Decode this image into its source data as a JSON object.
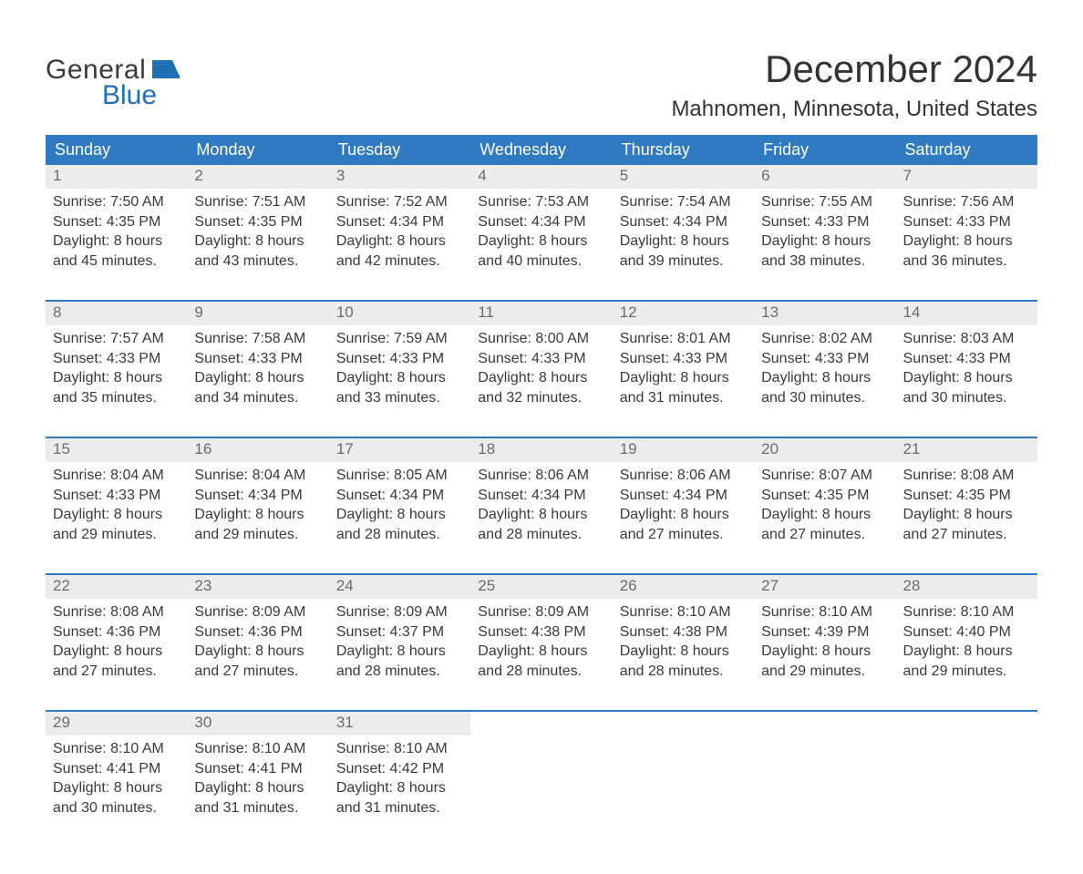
{
  "brand": {
    "word1": "General",
    "word2": "Blue",
    "flag_color": "#1f6fb2",
    "text_color_dark": "#3a3a3a"
  },
  "title": "December 2024",
  "location": "Mahnomen, Minnesota, United States",
  "colors": {
    "header_bg": "#2f7ac0",
    "header_text": "#ffffff",
    "daynum_bg": "#ececec",
    "daynum_text": "#6b6b6b",
    "body_text": "#3a3a3a",
    "rule": "#2f7ac0",
    "page_bg": "#ffffff"
  },
  "day_headers": [
    "Sunday",
    "Monday",
    "Tuesday",
    "Wednesday",
    "Thursday",
    "Friday",
    "Saturday"
  ],
  "weeks": [
    [
      {
        "n": "1",
        "sunrise": "7:50 AM",
        "sunset": "4:35 PM",
        "dl1": "Daylight: 8 hours",
        "dl2": "and 45 minutes."
      },
      {
        "n": "2",
        "sunrise": "7:51 AM",
        "sunset": "4:35 PM",
        "dl1": "Daylight: 8 hours",
        "dl2": "and 43 minutes."
      },
      {
        "n": "3",
        "sunrise": "7:52 AM",
        "sunset": "4:34 PM",
        "dl1": "Daylight: 8 hours",
        "dl2": "and 42 minutes."
      },
      {
        "n": "4",
        "sunrise": "7:53 AM",
        "sunset": "4:34 PM",
        "dl1": "Daylight: 8 hours",
        "dl2": "and 40 minutes."
      },
      {
        "n": "5",
        "sunrise": "7:54 AM",
        "sunset": "4:34 PM",
        "dl1": "Daylight: 8 hours",
        "dl2": "and 39 minutes."
      },
      {
        "n": "6",
        "sunrise": "7:55 AM",
        "sunset": "4:33 PM",
        "dl1": "Daylight: 8 hours",
        "dl2": "and 38 minutes."
      },
      {
        "n": "7",
        "sunrise": "7:56 AM",
        "sunset": "4:33 PM",
        "dl1": "Daylight: 8 hours",
        "dl2": "and 36 minutes."
      }
    ],
    [
      {
        "n": "8",
        "sunrise": "7:57 AM",
        "sunset": "4:33 PM",
        "dl1": "Daylight: 8 hours",
        "dl2": "and 35 minutes."
      },
      {
        "n": "9",
        "sunrise": "7:58 AM",
        "sunset": "4:33 PM",
        "dl1": "Daylight: 8 hours",
        "dl2": "and 34 minutes."
      },
      {
        "n": "10",
        "sunrise": "7:59 AM",
        "sunset": "4:33 PM",
        "dl1": "Daylight: 8 hours",
        "dl2": "and 33 minutes."
      },
      {
        "n": "11",
        "sunrise": "8:00 AM",
        "sunset": "4:33 PM",
        "dl1": "Daylight: 8 hours",
        "dl2": "and 32 minutes."
      },
      {
        "n": "12",
        "sunrise": "8:01 AM",
        "sunset": "4:33 PM",
        "dl1": "Daylight: 8 hours",
        "dl2": "and 31 minutes."
      },
      {
        "n": "13",
        "sunrise": "8:02 AM",
        "sunset": "4:33 PM",
        "dl1": "Daylight: 8 hours",
        "dl2": "and 30 minutes."
      },
      {
        "n": "14",
        "sunrise": "8:03 AM",
        "sunset": "4:33 PM",
        "dl1": "Daylight: 8 hours",
        "dl2": "and 30 minutes."
      }
    ],
    [
      {
        "n": "15",
        "sunrise": "8:04 AM",
        "sunset": "4:33 PM",
        "dl1": "Daylight: 8 hours",
        "dl2": "and 29 minutes."
      },
      {
        "n": "16",
        "sunrise": "8:04 AM",
        "sunset": "4:34 PM",
        "dl1": "Daylight: 8 hours",
        "dl2": "and 29 minutes."
      },
      {
        "n": "17",
        "sunrise": "8:05 AM",
        "sunset": "4:34 PM",
        "dl1": "Daylight: 8 hours",
        "dl2": "and 28 minutes."
      },
      {
        "n": "18",
        "sunrise": "8:06 AM",
        "sunset": "4:34 PM",
        "dl1": "Daylight: 8 hours",
        "dl2": "and 28 minutes."
      },
      {
        "n": "19",
        "sunrise": "8:06 AM",
        "sunset": "4:34 PM",
        "dl1": "Daylight: 8 hours",
        "dl2": "and 27 minutes."
      },
      {
        "n": "20",
        "sunrise": "8:07 AM",
        "sunset": "4:35 PM",
        "dl1": "Daylight: 8 hours",
        "dl2": "and 27 minutes."
      },
      {
        "n": "21",
        "sunrise": "8:08 AM",
        "sunset": "4:35 PM",
        "dl1": "Daylight: 8 hours",
        "dl2": "and 27 minutes."
      }
    ],
    [
      {
        "n": "22",
        "sunrise": "8:08 AM",
        "sunset": "4:36 PM",
        "dl1": "Daylight: 8 hours",
        "dl2": "and 27 minutes."
      },
      {
        "n": "23",
        "sunrise": "8:09 AM",
        "sunset": "4:36 PM",
        "dl1": "Daylight: 8 hours",
        "dl2": "and 27 minutes."
      },
      {
        "n": "24",
        "sunrise": "8:09 AM",
        "sunset": "4:37 PM",
        "dl1": "Daylight: 8 hours",
        "dl2": "and 28 minutes."
      },
      {
        "n": "25",
        "sunrise": "8:09 AM",
        "sunset": "4:38 PM",
        "dl1": "Daylight: 8 hours",
        "dl2": "and 28 minutes."
      },
      {
        "n": "26",
        "sunrise": "8:10 AM",
        "sunset": "4:38 PM",
        "dl1": "Daylight: 8 hours",
        "dl2": "and 28 minutes."
      },
      {
        "n": "27",
        "sunrise": "8:10 AM",
        "sunset": "4:39 PM",
        "dl1": "Daylight: 8 hours",
        "dl2": "and 29 minutes."
      },
      {
        "n": "28",
        "sunrise": "8:10 AM",
        "sunset": "4:40 PM",
        "dl1": "Daylight: 8 hours",
        "dl2": "and 29 minutes."
      }
    ],
    [
      {
        "n": "29",
        "sunrise": "8:10 AM",
        "sunset": "4:41 PM",
        "dl1": "Daylight: 8 hours",
        "dl2": "and 30 minutes."
      },
      {
        "n": "30",
        "sunrise": "8:10 AM",
        "sunset": "4:41 PM",
        "dl1": "Daylight: 8 hours",
        "dl2": "and 31 minutes."
      },
      {
        "n": "31",
        "sunrise": "8:10 AM",
        "sunset": "4:42 PM",
        "dl1": "Daylight: 8 hours",
        "dl2": "and 31 minutes."
      },
      null,
      null,
      null,
      null
    ]
  ],
  "labels": {
    "sunrise_prefix": "Sunrise: ",
    "sunset_prefix": "Sunset: "
  }
}
